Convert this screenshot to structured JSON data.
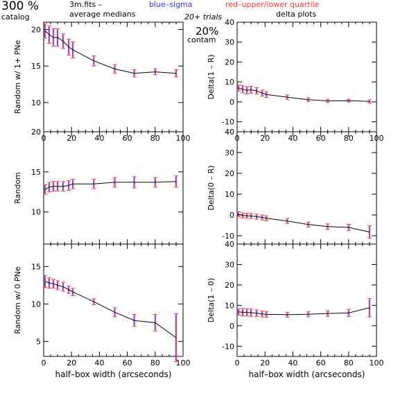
{
  "header": {
    "percent": "300 %",
    "catalog": "catalog",
    "file": "3m.fits  –",
    "average_medians": "average medians",
    "blue_sigma": "blue–sigma",
    "red_quartile": "red–upper/lower quartile",
    "trials": "20+ trials",
    "contam_pct": "20%",
    "contam": "contam",
    "delta_plots": "delta plots"
  },
  "colors": {
    "line": "#000000",
    "sigma": "#3333ff",
    "quartile": "#ff3333",
    "axes": "#000000"
  },
  "chart_data": [
    {
      "type": "line",
      "panel": "left-top",
      "ylabel": "Random w/ 1+ PNe",
      "xlabel": "",
      "xlim": [
        0,
        100
      ],
      "ylim": [
        6,
        21
      ],
      "x_ticks": [
        0,
        20,
        40,
        60,
        80,
        100
      ],
      "y_ticks": [
        10,
        15,
        20
      ],
      "show_x_tick_labels": true,
      "x": [
        1,
        4,
        7,
        10,
        14,
        18,
        21,
        36,
        51,
        65,
        80,
        95
      ],
      "y": [
        19.8,
        19.3,
        18.9,
        18.9,
        18.4,
        17.6,
        17.2,
        15.7,
        14.6,
        14.0,
        14.2,
        14.0
      ],
      "err": [
        1.0,
        1.2,
        1.2,
        1.2,
        1.0,
        1.1,
        1.1,
        0.7,
        0.6,
        0.5,
        0.4,
        0.5
      ]
    },
    {
      "type": "line",
      "panel": "right-top",
      "ylabel": "Delta(1 – R)",
      "xlabel": "",
      "xlim": [
        0,
        100
      ],
      "ylim": [
        -15,
        40
      ],
      "x_ticks": [
        0,
        20,
        40,
        60,
        80,
        100
      ],
      "y_ticks": [
        -10,
        0,
        10,
        20,
        30,
        40
      ],
      "show_x_tick_labels": true,
      "x": [
        1,
        4,
        7,
        10,
        14,
        18,
        21,
        36,
        51,
        65,
        80,
        95
      ],
      "y": [
        7.0,
        6.3,
        5.8,
        6.1,
        5.5,
        4.4,
        3.7,
        2.3,
        1.1,
        0.5,
        0.6,
        0.2
      ],
      "err": [
        1.5,
        1.8,
        1.8,
        1.7,
        1.6,
        1.5,
        1.5,
        1.2,
        1.0,
        0.8,
        0.7,
        0.8
      ]
    },
    {
      "type": "line",
      "panel": "left-middle",
      "ylabel": "Random",
      "xlabel": "",
      "xlim": [
        0,
        100
      ],
      "ylim": [
        6,
        20
      ],
      "x_ticks": [
        0,
        20,
        40,
        60,
        80,
        100
      ],
      "y_ticks": [
        10,
        15,
        20
      ],
      "show_x_tick_labels": false,
      "x": [
        1,
        4,
        7,
        10,
        14,
        18,
        21,
        36,
        51,
        65,
        80,
        95
      ],
      "y": [
        12.8,
        13.1,
        13.2,
        13.2,
        13.2,
        13.3,
        13.5,
        13.5,
        13.7,
        13.7,
        13.7,
        13.8
      ],
      "err": [
        0.6,
        0.6,
        0.6,
        0.6,
        0.6,
        0.6,
        0.6,
        0.6,
        0.6,
        0.7,
        0.6,
        0.7
      ]
    },
    {
      "type": "line",
      "panel": "right-middle",
      "ylabel": "Delta(0 – R)",
      "xlabel": "",
      "xlim": [
        0,
        100
      ],
      "ylim": [
        -14,
        40
      ],
      "x_ticks": [
        0,
        20,
        40,
        60,
        80,
        100
      ],
      "y_ticks": [
        -10,
        0,
        10,
        20,
        30,
        40
      ],
      "show_x_tick_labels": false,
      "x": [
        1,
        4,
        7,
        10,
        14,
        18,
        21,
        36,
        51,
        65,
        80,
        95
      ],
      "y": [
        0.3,
        -0.2,
        -0.4,
        -0.5,
        -0.8,
        -1.2,
        -1.6,
        -2.9,
        -4.6,
        -5.6,
        -6.0,
        -8.2
      ],
      "err": [
        1.2,
        1.2,
        1.2,
        1.2,
        1.2,
        1.2,
        1.2,
        1.2,
        1.2,
        1.3,
        1.5,
        3.0
      ]
    },
    {
      "type": "line",
      "panel": "left-bottom",
      "ylabel": "Random w/ 0 PNe",
      "xlabel": "half–box width (arcseconds)",
      "xlim": [
        0,
        100
      ],
      "ylim": [
        3,
        18
      ],
      "x_ticks": [
        0,
        20,
        40,
        60,
        80,
        100
      ],
      "y_ticks": [
        5,
        10,
        15
      ],
      "show_x_tick_labels": true,
      "x": [
        1,
        4,
        7,
        10,
        14,
        18,
        21,
        36,
        51,
        65,
        80,
        95
      ],
      "y": [
        13.0,
        12.8,
        12.7,
        12.5,
        12.3,
        11.9,
        11.6,
        10.3,
        8.9,
        7.8,
        7.5,
        5.5
      ],
      "err": [
        0.8,
        0.7,
        0.6,
        0.6,
        0.6,
        0.5,
        0.5,
        0.4,
        0.6,
        0.8,
        1.1,
        3.2
      ]
    },
    {
      "type": "line",
      "panel": "right-bottom",
      "ylabel": "Delta(1 – 0)",
      "xlabel": "half–box width (arcseconds)",
      "xlim": [
        0,
        100
      ],
      "ylim": [
        -15,
        40
      ],
      "x_ticks": [
        0,
        20,
        40,
        60,
        80,
        100
      ],
      "y_ticks": [
        -10,
        0,
        10,
        20,
        30,
        40
      ],
      "show_x_tick_labels": true,
      "x": [
        1,
        4,
        7,
        10,
        14,
        18,
        21,
        36,
        51,
        65,
        80,
        95
      ],
      "y": [
        6.8,
        6.6,
        6.6,
        6.4,
        6.2,
        5.8,
        5.6,
        5.4,
        5.6,
        6.0,
        6.3,
        8.8
      ],
      "err": [
        1.6,
        1.8,
        1.8,
        1.8,
        1.6,
        1.5,
        1.4,
        1.2,
        1.2,
        1.4,
        1.8,
        4.5
      ]
    }
  ]
}
